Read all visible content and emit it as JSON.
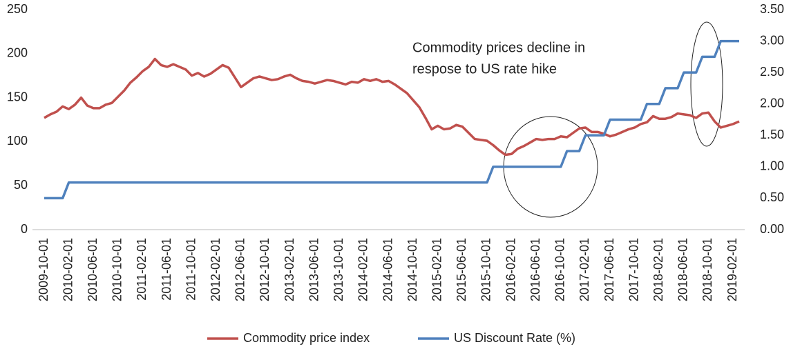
{
  "chart_data": {
    "type": "line",
    "annotation": [
      "Commodity prices decline in",
      "respose to US rate hike"
    ],
    "categories": [
      "2009-10-01",
      null,
      null,
      null,
      "2010-02-01",
      null,
      null,
      null,
      "2010-06-01",
      null,
      null,
      null,
      "2010-10-01",
      null,
      null,
      null,
      "2011-02-01",
      null,
      null,
      null,
      "2011-06-01",
      null,
      null,
      null,
      "2011-10-01",
      null,
      null,
      null,
      "2012-02-01",
      null,
      null,
      null,
      "2012-06-01",
      null,
      null,
      null,
      "2012-10-01",
      null,
      null,
      null,
      "2013-02-01",
      null,
      null,
      null,
      "2013-06-01",
      null,
      null,
      null,
      "2013-10-01",
      null,
      null,
      null,
      "2014-02-01",
      null,
      null,
      null,
      "2014-06-01",
      null,
      null,
      null,
      "2014-10-01",
      null,
      null,
      null,
      "2015-02-01",
      null,
      null,
      null,
      "2015-06-01",
      null,
      null,
      null,
      "2015-10-01",
      null,
      null,
      null,
      "2016-02-01",
      null,
      null,
      null,
      "2016-06-01",
      null,
      null,
      null,
      "2016-10-01",
      null,
      null,
      null,
      "2017-02-01",
      null,
      null,
      null,
      "2017-06-01",
      null,
      null,
      null,
      "2017-10-01",
      null,
      null,
      null,
      "2018-02-01",
      null,
      null,
      null,
      "2018-06-01",
      null,
      null,
      null,
      "2018-10-01",
      null,
      null,
      null,
      "2019-02-01",
      null
    ],
    "series": [
      {
        "name": "Commodity price index",
        "color": "#c0504d",
        "axis": "y",
        "values": [
          127,
          131,
          134,
          140,
          137,
          142,
          150,
          141,
          138,
          138,
          142,
          144,
          151,
          158,
          167,
          173,
          180,
          185,
          194,
          187,
          185,
          188,
          185,
          182,
          175,
          178,
          174,
          177,
          182,
          187,
          184,
          173,
          162,
          167,
          172,
          174,
          172,
          170,
          171,
          174,
          176,
          172,
          169,
          168,
          166,
          168,
          170,
          169,
          167,
          165,
          168,
          167,
          171,
          169,
          171,
          168,
          169,
          165,
          160,
          155,
          147,
          139,
          127,
          114,
          118,
          114,
          115,
          119,
          117,
          110,
          103,
          102,
          101,
          96,
          90,
          85,
          86,
          92,
          95,
          99,
          103,
          102,
          103,
          103,
          106,
          105,
          110,
          115,
          116,
          111,
          111,
          109,
          106,
          108,
          111,
          114,
          116,
          120,
          122,
          129,
          126,
          126,
          128,
          132,
          131,
          130,
          127,
          132,
          133,
          123,
          116,
          118,
          120,
          123
        ]
      },
      {
        "name": "US Discount Rate (%)",
        "color": "#4f81bd",
        "axis": "y2",
        "values": [
          0.5,
          0.5,
          0.5,
          0.5,
          0.75,
          0.75,
          0.75,
          0.75,
          0.75,
          0.75,
          0.75,
          0.75,
          0.75,
          0.75,
          0.75,
          0.75,
          0.75,
          0.75,
          0.75,
          0.75,
          0.75,
          0.75,
          0.75,
          0.75,
          0.75,
          0.75,
          0.75,
          0.75,
          0.75,
          0.75,
          0.75,
          0.75,
          0.75,
          0.75,
          0.75,
          0.75,
          0.75,
          0.75,
          0.75,
          0.75,
          0.75,
          0.75,
          0.75,
          0.75,
          0.75,
          0.75,
          0.75,
          0.75,
          0.75,
          0.75,
          0.75,
          0.75,
          0.75,
          0.75,
          0.75,
          0.75,
          0.75,
          0.75,
          0.75,
          0.75,
          0.75,
          0.75,
          0.75,
          0.75,
          0.75,
          0.75,
          0.75,
          0.75,
          0.75,
          0.75,
          0.75,
          0.75,
          0.75,
          1,
          1,
          1,
          1,
          1,
          1,
          1,
          1,
          1,
          1,
          1,
          1,
          1.25,
          1.25,
          1.25,
          1.5,
          1.5,
          1.5,
          1.5,
          1.75,
          1.75,
          1.75,
          1.75,
          1.75,
          1.75,
          2,
          2,
          2,
          2.25,
          2.25,
          2.25,
          2.5,
          2.5,
          2.5,
          2.75,
          2.75,
          2.75,
          3,
          3,
          3,
          3
        ]
      }
    ],
    "ylim": [
      0,
      250
    ],
    "yticks": [
      0,
      50,
      100,
      150,
      200,
      250
    ],
    "y2lim": [
      0,
      3.5
    ],
    "y2ticks": [
      {
        "value": 0,
        "label": "0.00"
      },
      {
        "value": 0.5,
        "label": "0.50"
      },
      {
        "value": 1,
        "label": "1.00"
      },
      {
        "value": 1.5,
        "label": "1.50"
      },
      {
        "value": 2,
        "label": "2.00"
      },
      {
        "value": 2.5,
        "label": "2.50"
      },
      {
        "value": 3,
        "label": "3.00"
      },
      {
        "value": 3.5,
        "label": "3.50"
      }
    ],
    "grid": false,
    "legend": "bottom"
  }
}
